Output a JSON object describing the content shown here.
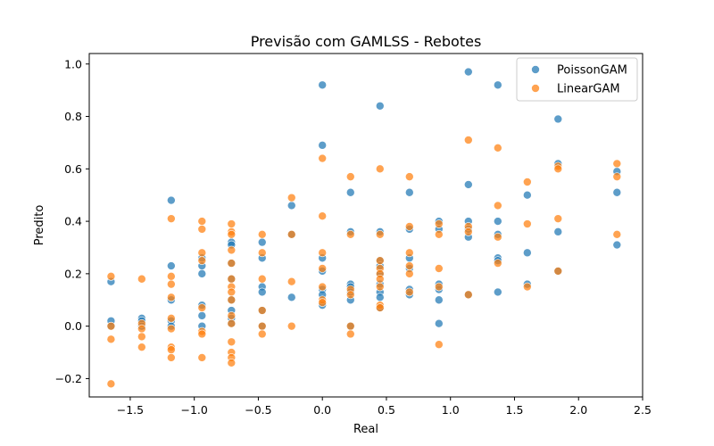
{
  "chart_data": {
    "type": "scatter",
    "title": "Previsão com GAMLSS - Rebotes",
    "xlabel": "Real",
    "ylabel": "Predito",
    "xlim": [
      -1.82,
      2.5
    ],
    "ylim": [
      -0.27,
      1.04
    ],
    "xticks": [
      -1.5,
      -1.0,
      -0.5,
      0.0,
      0.5,
      1.0,
      1.5,
      2.0,
      2.5
    ],
    "xtick_labels": [
      "−1.5",
      "−1.0",
      "−0.5",
      "0.0",
      "0.5",
      "1.0",
      "1.5",
      "2.0",
      "2.5"
    ],
    "yticks": [
      -0.2,
      0.0,
      0.2,
      0.4,
      0.6,
      0.8,
      1.0
    ],
    "ytick_labels": [
      "−0.2",
      "0.0",
      "0.2",
      "0.4",
      "0.6",
      "0.8",
      "1.0"
    ],
    "grid": false,
    "legend_position": "top-right",
    "series": [
      {
        "name": "PoissonGAM",
        "color": "#1f77b4",
        "points": [
          [
            -1.65,
            0.17
          ],
          [
            -1.65,
            0.02
          ],
          [
            -1.65,
            0.0
          ],
          [
            -1.41,
            0.03
          ],
          [
            -1.41,
            0.02
          ],
          [
            -1.41,
            0.0
          ],
          [
            -1.18,
            0.48
          ],
          [
            -1.18,
            0.23
          ],
          [
            -1.18,
            0.1
          ],
          [
            -1.18,
            0.02
          ],
          [
            -1.18,
            0.0
          ],
          [
            -0.94,
            0.26
          ],
          [
            -0.94,
            0.23
          ],
          [
            -0.94,
            0.2
          ],
          [
            -0.94,
            0.08
          ],
          [
            -0.94,
            0.04
          ],
          [
            -0.94,
            0.0
          ],
          [
            -0.71,
            0.32
          ],
          [
            -0.71,
            0.31
          ],
          [
            -0.71,
            0.24
          ],
          [
            -0.71,
            0.18
          ],
          [
            -0.71,
            0.1
          ],
          [
            -0.71,
            0.06
          ],
          [
            -0.71,
            0.03
          ],
          [
            -0.71,
            0.01
          ],
          [
            -0.47,
            0.32
          ],
          [
            -0.47,
            0.26
          ],
          [
            -0.47,
            0.15
          ],
          [
            -0.47,
            0.13
          ],
          [
            -0.47,
            0.06
          ],
          [
            -0.47,
            0.0
          ],
          [
            -0.24,
            0.46
          ],
          [
            -0.24,
            0.35
          ],
          [
            -0.24,
            0.11
          ],
          [
            0.0,
            0.92
          ],
          [
            0.0,
            0.69
          ],
          [
            0.0,
            0.26
          ],
          [
            0.0,
            0.21
          ],
          [
            0.0,
            0.14
          ],
          [
            0.0,
            0.12
          ],
          [
            0.0,
            0.08
          ],
          [
            0.22,
            0.51
          ],
          [
            0.22,
            0.36
          ],
          [
            0.22,
            0.16
          ],
          [
            0.22,
            0.15
          ],
          [
            0.22,
            0.13
          ],
          [
            0.22,
            0.1
          ],
          [
            0.22,
            0.0
          ],
          [
            0.45,
            0.84
          ],
          [
            0.45,
            0.36
          ],
          [
            0.45,
            0.25
          ],
          [
            0.45,
            0.23
          ],
          [
            0.45,
            0.2
          ],
          [
            0.45,
            0.16
          ],
          [
            0.45,
            0.13
          ],
          [
            0.45,
            0.11
          ],
          [
            0.45,
            0.07
          ],
          [
            0.68,
            0.51
          ],
          [
            0.68,
            0.37
          ],
          [
            0.68,
            0.26
          ],
          [
            0.68,
            0.22
          ],
          [
            0.68,
            0.14
          ],
          [
            0.68,
            0.12
          ],
          [
            0.91,
            0.4
          ],
          [
            0.91,
            0.37
          ],
          [
            0.91,
            0.16
          ],
          [
            0.91,
            0.14
          ],
          [
            0.91,
            0.1
          ],
          [
            0.91,
            0.01
          ],
          [
            1.14,
            0.97
          ],
          [
            1.14,
            0.54
          ],
          [
            1.14,
            0.4
          ],
          [
            1.14,
            0.37
          ],
          [
            1.14,
            0.34
          ],
          [
            1.14,
            0.12
          ],
          [
            1.37,
            0.92
          ],
          [
            1.37,
            0.4
          ],
          [
            1.37,
            0.35
          ],
          [
            1.37,
            0.26
          ],
          [
            1.37,
            0.25
          ],
          [
            1.37,
            0.13
          ],
          [
            1.6,
            0.5
          ],
          [
            1.6,
            0.28
          ],
          [
            1.6,
            0.16
          ],
          [
            1.84,
            0.79
          ],
          [
            1.84,
            0.62
          ],
          [
            1.84,
            0.36
          ],
          [
            1.84,
            0.21
          ],
          [
            2.3,
            0.59
          ],
          [
            2.3,
            0.51
          ],
          [
            2.3,
            0.31
          ]
        ]
      },
      {
        "name": "LinearGAM",
        "color": "#ff7f0e",
        "points": [
          [
            -1.65,
            0.19
          ],
          [
            -1.65,
            0.0
          ],
          [
            -1.65,
            -0.05
          ],
          [
            -1.65,
            -0.22
          ],
          [
            -1.41,
            0.18
          ],
          [
            -1.41,
            0.01
          ],
          [
            -1.41,
            -0.01
          ],
          [
            -1.41,
            -0.04
          ],
          [
            -1.41,
            -0.08
          ],
          [
            -1.18,
            0.41
          ],
          [
            -1.18,
            0.19
          ],
          [
            -1.18,
            0.16
          ],
          [
            -1.18,
            0.11
          ],
          [
            -1.18,
            0.03
          ],
          [
            -1.18,
            -0.01
          ],
          [
            -1.18,
            -0.08
          ],
          [
            -1.18,
            -0.09
          ],
          [
            -1.18,
            -0.12
          ],
          [
            -0.94,
            0.4
          ],
          [
            -0.94,
            0.37
          ],
          [
            -0.94,
            0.28
          ],
          [
            -0.94,
            0.25
          ],
          [
            -0.94,
            0.07
          ],
          [
            -0.94,
            -0.02
          ],
          [
            -0.94,
            -0.03
          ],
          [
            -0.94,
            -0.12
          ],
          [
            -0.71,
            0.39
          ],
          [
            -0.71,
            0.36
          ],
          [
            -0.71,
            0.35
          ],
          [
            -0.71,
            0.29
          ],
          [
            -0.71,
            0.24
          ],
          [
            -0.71,
            0.18
          ],
          [
            -0.71,
            0.15
          ],
          [
            -0.71,
            0.13
          ],
          [
            -0.71,
            0.1
          ],
          [
            -0.71,
            0.04
          ],
          [
            -0.71,
            0.01
          ],
          [
            -0.71,
            -0.06
          ],
          [
            -0.71,
            -0.1
          ],
          [
            -0.71,
            -0.12
          ],
          [
            -0.71,
            -0.14
          ],
          [
            -0.47,
            0.35
          ],
          [
            -0.47,
            0.28
          ],
          [
            -0.47,
            0.18
          ],
          [
            -0.47,
            0.06
          ],
          [
            -0.47,
            0.0
          ],
          [
            -0.47,
            -0.03
          ],
          [
            -0.24,
            0.49
          ],
          [
            -0.24,
            0.35
          ],
          [
            -0.24,
            0.17
          ],
          [
            -0.24,
            0.0
          ],
          [
            0.0,
            0.64
          ],
          [
            0.0,
            0.42
          ],
          [
            0.0,
            0.28
          ],
          [
            0.0,
            0.22
          ],
          [
            0.0,
            0.15
          ],
          [
            0.0,
            0.1
          ],
          [
            0.0,
            0.09
          ],
          [
            0.22,
            0.57
          ],
          [
            0.22,
            0.35
          ],
          [
            0.22,
            0.14
          ],
          [
            0.22,
            0.12
          ],
          [
            0.22,
            0.0
          ],
          [
            0.22,
            -0.03
          ],
          [
            0.45,
            0.6
          ],
          [
            0.45,
            0.35
          ],
          [
            0.45,
            0.25
          ],
          [
            0.45,
            0.22
          ],
          [
            0.45,
            0.2
          ],
          [
            0.45,
            0.18
          ],
          [
            0.45,
            0.15
          ],
          [
            0.45,
            0.08
          ],
          [
            0.45,
            0.07
          ],
          [
            0.68,
            0.57
          ],
          [
            0.68,
            0.38
          ],
          [
            0.68,
            0.28
          ],
          [
            0.68,
            0.23
          ],
          [
            0.68,
            0.2
          ],
          [
            0.68,
            0.13
          ],
          [
            0.91,
            0.39
          ],
          [
            0.91,
            0.35
          ],
          [
            0.91,
            0.22
          ],
          [
            0.91,
            0.15
          ],
          [
            0.91,
            -0.07
          ],
          [
            1.14,
            0.71
          ],
          [
            1.14,
            0.38
          ],
          [
            1.14,
            0.36
          ],
          [
            1.14,
            0.12
          ],
          [
            1.37,
            0.68
          ],
          [
            1.37,
            0.46
          ],
          [
            1.37,
            0.34
          ],
          [
            1.37,
            0.24
          ],
          [
            1.6,
            0.55
          ],
          [
            1.6,
            0.39
          ],
          [
            1.6,
            0.15
          ],
          [
            1.84,
            0.61
          ],
          [
            1.84,
            0.6
          ],
          [
            1.84,
            0.41
          ],
          [
            1.84,
            0.21
          ],
          [
            2.3,
            0.62
          ],
          [
            2.3,
            0.57
          ],
          [
            2.3,
            0.35
          ]
        ]
      }
    ]
  }
}
